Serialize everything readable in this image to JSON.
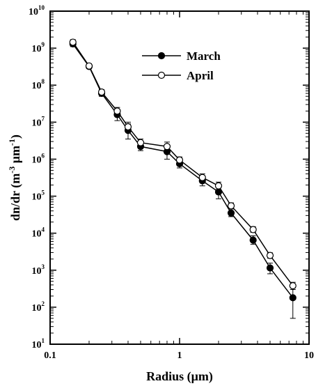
{
  "chart_data": {
    "type": "line",
    "xlabel": "Radius (μm)",
    "ylabel": "dn/dr (m-3 μm-1)",
    "ylabel_parts": {
      "main": "dn/dr (m",
      "exp1": "-3",
      "mid": " μm",
      "exp2": "-1",
      "close": ")"
    },
    "xscale": "log",
    "yscale": "log",
    "xlim": [
      0.1,
      10
    ],
    "ylim": [
      10,
      10000000000
    ],
    "x_ticks": [
      "0.1",
      "1",
      "10"
    ],
    "y_ticks": [
      {
        "base": "10",
        "exp": "1"
      },
      {
        "base": "10",
        "exp": "2"
      },
      {
        "base": "10",
        "exp": "3"
      },
      {
        "base": "10",
        "exp": "4"
      },
      {
        "base": "10",
        "exp": "5"
      },
      {
        "base": "10",
        "exp": "6"
      },
      {
        "base": "10",
        "exp": "7"
      },
      {
        "base": "10",
        "exp": "8"
      },
      {
        "base": "10",
        "exp": "9"
      },
      {
        "base": "10",
        "exp": "10"
      }
    ],
    "legend": {
      "position": "top-center"
    },
    "series": [
      {
        "name": "March",
        "marker": "filled-circle",
        "x": [
          0.15,
          0.2,
          0.25,
          0.33,
          0.4,
          0.5,
          0.8,
          1.0,
          1.5,
          2.0,
          2.5,
          3.7,
          5.0,
          7.5
        ],
        "y": [
          1300000000,
          320000000,
          60000000,
          16000000,
          6000000,
          2200000,
          1600000,
          750000,
          260000,
          130000,
          35000,
          6500,
          1150,
          180
        ],
        "err_low": [
          1100000000,
          280000000,
          50000000,
          11000000,
          3500000,
          1700000,
          1000000,
          580000,
          190000,
          85000,
          28000,
          5000,
          800,
          50
        ],
        "err_high": [
          1550000000,
          370000000,
          72000000,
          22000000,
          9000000,
          2800000,
          2500000,
          950000,
          340000,
          185000,
          45000,
          8500,
          1550,
          330
        ]
      },
      {
        "name": "April",
        "marker": "open-circle",
        "x": [
          0.15,
          0.2,
          0.25,
          0.33,
          0.4,
          0.5,
          0.8,
          1.0,
          1.5,
          2.0,
          2.5,
          3.7,
          5.0,
          7.5
        ],
        "y": [
          1450000000,
          330000000,
          65000000,
          20000000,
          7500000,
          2800000,
          2200000,
          950000,
          320000,
          190000,
          55000,
          12500,
          2500,
          380
        ],
        "err_low": [
          1250000000,
          290000000,
          56000000,
          16000000,
          5500000,
          2300000,
          1700000,
          800000,
          260000,
          150000,
          46000,
          10500,
          2100,
          300
        ],
        "err_high": [
          1700000000,
          380000000,
          76000000,
          25000000,
          10000000,
          3500000,
          2900000,
          1150000,
          400000,
          240000,
          66000,
          15000,
          2950,
          470
        ]
      }
    ]
  }
}
